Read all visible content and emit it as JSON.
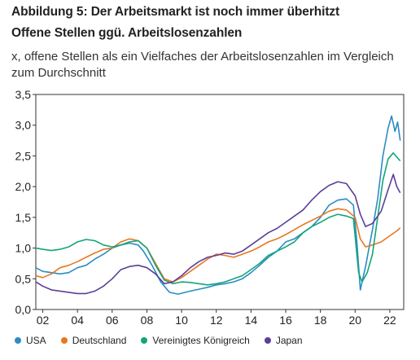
{
  "header": {
    "title": "Abbildung 5: Der Arbeitsmarkt ist noch immer überhitzt",
    "subtitle": "Offene Stellen ggü. Arbeitslosenzahlen",
    "unit_text": "x, offene Stellen als ein Vielfaches der Arbeitslosenzahlen im Vergleich zum Durchschnitt"
  },
  "chart_data": {
    "type": "line",
    "title": "Offene Stellen ggü. Arbeitslosenzahlen",
    "xlabel": "",
    "ylabel": "",
    "xlim": [
      2001.6,
      2022.8
    ],
    "ylim": [
      0,
      3.5
    ],
    "x_ticks": [
      {
        "value": 2002,
        "label": "02"
      },
      {
        "value": 2004,
        "label": "04"
      },
      {
        "value": 2006,
        "label": "06"
      },
      {
        "value": 2008,
        "label": "08"
      },
      {
        "value": 2010,
        "label": "10"
      },
      {
        "value": 2012,
        "label": "12"
      },
      {
        "value": 2014,
        "label": "14"
      },
      {
        "value": 2016,
        "label": "16"
      },
      {
        "value": 2018,
        "label": "18"
      },
      {
        "value": 2020,
        "label": "20"
      },
      {
        "value": 2022,
        "label": "22"
      }
    ],
    "y_ticks": [
      {
        "value": 0,
        "label": "0,0"
      },
      {
        "value": 0.5,
        "label": "0,5"
      },
      {
        "value": 1.0,
        "label": "1,0"
      },
      {
        "value": 1.5,
        "label": "1,5"
      },
      {
        "value": 2.0,
        "label": "2,0"
      },
      {
        "value": 2.5,
        "label": "2,5"
      },
      {
        "value": 3.0,
        "label": "3,0"
      },
      {
        "value": 3.5,
        "label": "3,5"
      }
    ],
    "grid": false,
    "legend_position": "bottom",
    "series": [
      {
        "name": "USA",
        "color": "#2b8cc4",
        "points": [
          [
            2001.6,
            0.68
          ],
          [
            2002.0,
            0.62
          ],
          [
            2002.5,
            0.6
          ],
          [
            2003.0,
            0.58
          ],
          [
            2003.5,
            0.6
          ],
          [
            2004.0,
            0.68
          ],
          [
            2004.5,
            0.72
          ],
          [
            2005.0,
            0.82
          ],
          [
            2005.5,
            0.9
          ],
          [
            2006.0,
            1.0
          ],
          [
            2006.5,
            1.05
          ],
          [
            2007.0,
            1.08
          ],
          [
            2007.5,
            1.05
          ],
          [
            2007.8,
            0.95
          ],
          [
            2008.3,
            0.72
          ],
          [
            2008.8,
            0.45
          ],
          [
            2009.3,
            0.28
          ],
          [
            2009.8,
            0.25
          ],
          [
            2010.5,
            0.3
          ],
          [
            2011.0,
            0.33
          ],
          [
            2011.5,
            0.36
          ],
          [
            2012.0,
            0.4
          ],
          [
            2012.5,
            0.42
          ],
          [
            2013.0,
            0.45
          ],
          [
            2013.5,
            0.5
          ],
          [
            2014.0,
            0.6
          ],
          [
            2014.5,
            0.72
          ],
          [
            2015.0,
            0.85
          ],
          [
            2015.5,
            0.95
          ],
          [
            2016.0,
            1.1
          ],
          [
            2016.5,
            1.15
          ],
          [
            2017.0,
            1.25
          ],
          [
            2017.5,
            1.35
          ],
          [
            2018.0,
            1.5
          ],
          [
            2018.5,
            1.7
          ],
          [
            2019.0,
            1.78
          ],
          [
            2019.5,
            1.8
          ],
          [
            2019.9,
            1.7
          ],
          [
            2020.1,
            1.1
          ],
          [
            2020.3,
            0.32
          ],
          [
            2020.6,
            0.7
          ],
          [
            2021.0,
            1.3
          ],
          [
            2021.3,
            1.8
          ],
          [
            2021.6,
            2.5
          ],
          [
            2021.9,
            2.95
          ],
          [
            2022.1,
            3.15
          ],
          [
            2022.3,
            2.9
          ],
          [
            2022.45,
            3.05
          ],
          [
            2022.6,
            2.75
          ]
        ]
      },
      {
        "name": "Deutschland",
        "color": "#e87722",
        "points": [
          [
            2001.6,
            0.55
          ],
          [
            2002.0,
            0.52
          ],
          [
            2002.5,
            0.58
          ],
          [
            2003.0,
            0.68
          ],
          [
            2003.5,
            0.72
          ],
          [
            2004.0,
            0.78
          ],
          [
            2004.5,
            0.85
          ],
          [
            2005.0,
            0.92
          ],
          [
            2005.5,
            0.98
          ],
          [
            2006.0,
            1.0
          ],
          [
            2006.5,
            1.1
          ],
          [
            2007.0,
            1.15
          ],
          [
            2007.5,
            1.12
          ],
          [
            2008.0,
            1.0
          ],
          [
            2008.5,
            0.75
          ],
          [
            2009.0,
            0.5
          ],
          [
            2009.5,
            0.45
          ],
          [
            2010.0,
            0.52
          ],
          [
            2010.5,
            0.62
          ],
          [
            2011.0,
            0.72
          ],
          [
            2011.5,
            0.82
          ],
          [
            2012.0,
            0.9
          ],
          [
            2012.5,
            0.88
          ],
          [
            2013.0,
            0.85
          ],
          [
            2013.5,
            0.9
          ],
          [
            2014.0,
            0.95
          ],
          [
            2014.5,
            1.02
          ],
          [
            2015.0,
            1.1
          ],
          [
            2015.5,
            1.15
          ],
          [
            2016.0,
            1.22
          ],
          [
            2016.5,
            1.3
          ],
          [
            2017.0,
            1.38
          ],
          [
            2017.5,
            1.45
          ],
          [
            2018.0,
            1.52
          ],
          [
            2018.5,
            1.6
          ],
          [
            2019.0,
            1.64
          ],
          [
            2019.5,
            1.62
          ],
          [
            2020.0,
            1.5
          ],
          [
            2020.3,
            1.15
          ],
          [
            2020.6,
            1.02
          ],
          [
            2021.0,
            1.05
          ],
          [
            2021.5,
            1.1
          ],
          [
            2022.0,
            1.2
          ],
          [
            2022.4,
            1.28
          ],
          [
            2022.6,
            1.33
          ]
        ]
      },
      {
        "name": "Vereinigtes Königreich",
        "color": "#12a57a",
        "points": [
          [
            2001.6,
            1.0
          ],
          [
            2002.0,
            0.98
          ],
          [
            2002.5,
            0.96
          ],
          [
            2003.0,
            0.98
          ],
          [
            2003.5,
            1.02
          ],
          [
            2004.0,
            1.1
          ],
          [
            2004.5,
            1.14
          ],
          [
            2005.0,
            1.12
          ],
          [
            2005.5,
            1.05
          ],
          [
            2006.0,
            1.02
          ],
          [
            2006.5,
            1.05
          ],
          [
            2007.0,
            1.1
          ],
          [
            2007.5,
            1.12
          ],
          [
            2008.0,
            1.0
          ],
          [
            2008.5,
            0.72
          ],
          [
            2009.0,
            0.48
          ],
          [
            2009.5,
            0.42
          ],
          [
            2010.0,
            0.45
          ],
          [
            2010.5,
            0.44
          ],
          [
            2011.0,
            0.42
          ],
          [
            2011.5,
            0.4
          ],
          [
            2012.0,
            0.42
          ],
          [
            2012.5,
            0.45
          ],
          [
            2013.0,
            0.5
          ],
          [
            2013.5,
            0.55
          ],
          [
            2014.0,
            0.65
          ],
          [
            2014.5,
            0.75
          ],
          [
            2015.0,
            0.88
          ],
          [
            2015.5,
            0.95
          ],
          [
            2016.0,
            1.02
          ],
          [
            2016.5,
            1.1
          ],
          [
            2017.0,
            1.25
          ],
          [
            2017.5,
            1.35
          ],
          [
            2018.0,
            1.42
          ],
          [
            2018.5,
            1.5
          ],
          [
            2019.0,
            1.55
          ],
          [
            2019.5,
            1.52
          ],
          [
            2019.9,
            1.48
          ],
          [
            2020.2,
            0.6
          ],
          [
            2020.4,
            0.45
          ],
          [
            2020.7,
            0.6
          ],
          [
            2021.0,
            0.9
          ],
          [
            2021.3,
            1.5
          ],
          [
            2021.6,
            2.1
          ],
          [
            2021.9,
            2.45
          ],
          [
            2022.2,
            2.55
          ],
          [
            2022.4,
            2.48
          ],
          [
            2022.6,
            2.42
          ]
        ]
      },
      {
        "name": "Japan",
        "color": "#5b3f99",
        "points": [
          [
            2001.6,
            0.45
          ],
          [
            2002.0,
            0.38
          ],
          [
            2002.5,
            0.32
          ],
          [
            2003.0,
            0.3
          ],
          [
            2003.5,
            0.28
          ],
          [
            2004.0,
            0.26
          ],
          [
            2004.5,
            0.26
          ],
          [
            2005.0,
            0.3
          ],
          [
            2005.5,
            0.38
          ],
          [
            2006.0,
            0.5
          ],
          [
            2006.5,
            0.65
          ],
          [
            2007.0,
            0.7
          ],
          [
            2007.5,
            0.72
          ],
          [
            2008.0,
            0.68
          ],
          [
            2008.5,
            0.58
          ],
          [
            2009.0,
            0.42
          ],
          [
            2009.5,
            0.45
          ],
          [
            2010.0,
            0.55
          ],
          [
            2010.5,
            0.68
          ],
          [
            2011.0,
            0.78
          ],
          [
            2011.5,
            0.85
          ],
          [
            2012.0,
            0.88
          ],
          [
            2012.5,
            0.92
          ],
          [
            2013.0,
            0.9
          ],
          [
            2013.5,
            0.95
          ],
          [
            2014.0,
            1.05
          ],
          [
            2014.5,
            1.15
          ],
          [
            2015.0,
            1.25
          ],
          [
            2015.5,
            1.32
          ],
          [
            2016.0,
            1.42
          ],
          [
            2016.5,
            1.52
          ],
          [
            2017.0,
            1.62
          ],
          [
            2017.5,
            1.78
          ],
          [
            2018.0,
            1.92
          ],
          [
            2018.5,
            2.02
          ],
          [
            2019.0,
            2.08
          ],
          [
            2019.5,
            2.05
          ],
          [
            2020.0,
            1.85
          ],
          [
            2020.3,
            1.55
          ],
          [
            2020.6,
            1.35
          ],
          [
            2021.0,
            1.4
          ],
          [
            2021.5,
            1.6
          ],
          [
            2021.9,
            1.95
          ],
          [
            2022.2,
            2.2
          ],
          [
            2022.4,
            2.0
          ],
          [
            2022.6,
            1.9
          ]
        ]
      }
    ]
  }
}
